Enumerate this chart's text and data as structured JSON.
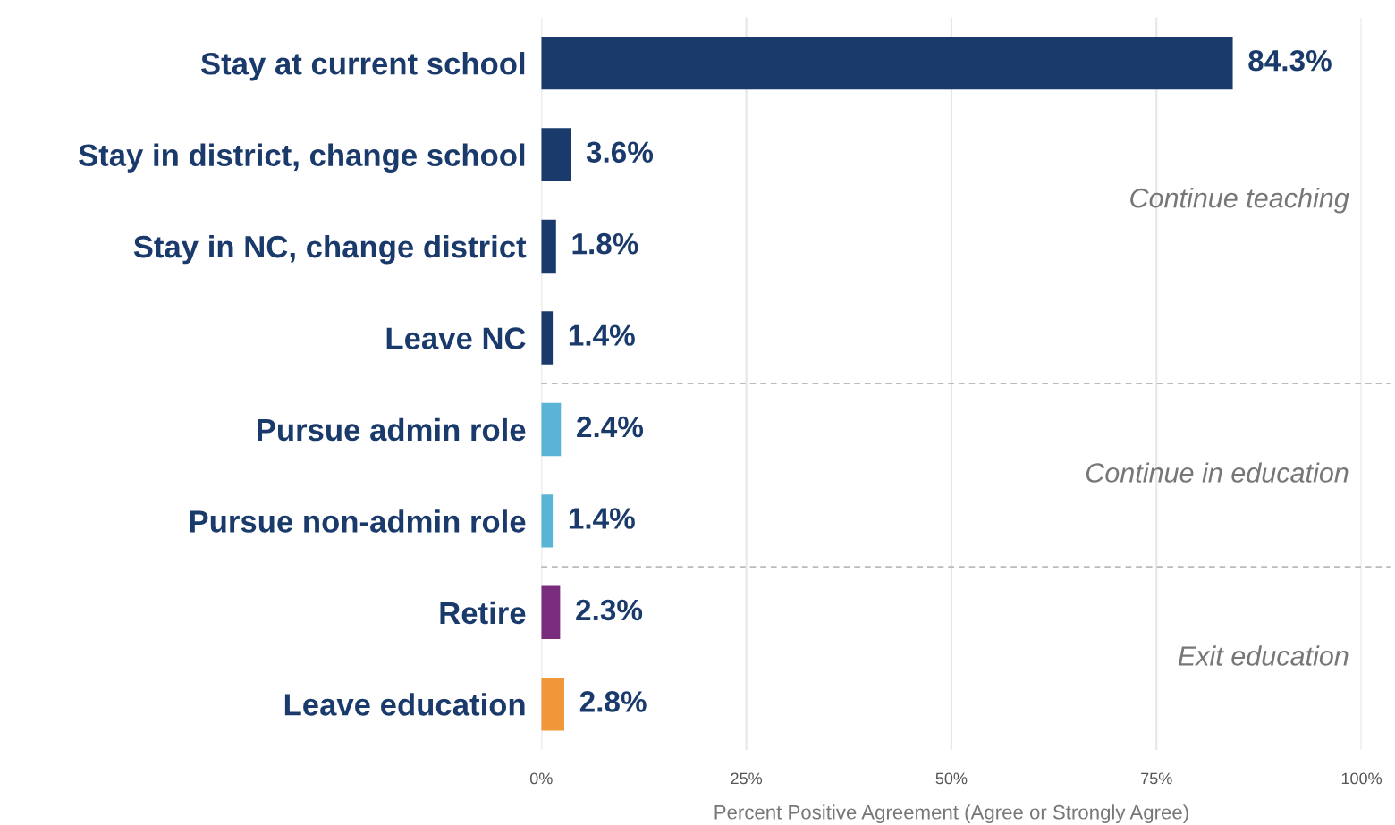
{
  "chart_data": {
    "type": "bar",
    "orientation": "horizontal",
    "xlabel": "Percent Positive Agreement (Agree or Strongly Agree)",
    "categories": [
      "Stay at current school",
      "Stay in district, change school",
      "Stay in NC, change district",
      "Leave NC",
      "Pursue admin role",
      "Pursue non-admin role",
      "Retire",
      "Leave education"
    ],
    "values": [
      84.3,
      3.6,
      1.8,
      1.4,
      2.4,
      1.4,
      2.3,
      2.8
    ],
    "value_labels": [
      "84.3%",
      "3.6%",
      "1.8%",
      "1.4%",
      "2.4%",
      "1.4%",
      "2.3%",
      "2.8%"
    ],
    "colors": [
      "#193a6b",
      "#193a6b",
      "#193a6b",
      "#193a6b",
      "#5ab4d6",
      "#5ab4d6",
      "#7b2d7d",
      "#f0973a"
    ],
    "xlim": [
      0,
      100
    ],
    "xticks": [
      {
        "value": 0,
        "label": "0%"
      },
      {
        "value": 25,
        "label": "25%"
      },
      {
        "value": 50,
        "label": "50%"
      },
      {
        "value": 75,
        "label": "75%"
      },
      {
        "value": 100,
        "label": "100%"
      }
    ],
    "grid": "x",
    "legend": false,
    "annotations": [
      "Continue teaching",
      "Continue in education",
      "Exit education"
    ]
  }
}
